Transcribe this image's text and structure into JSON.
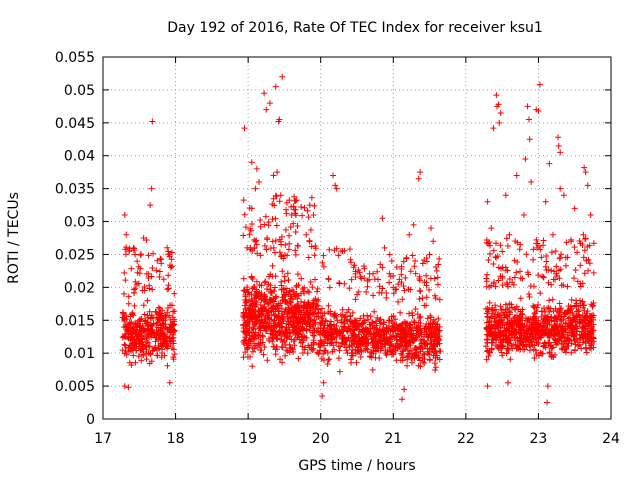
{
  "chart_data": {
    "type": "scatter",
    "title": "Day 192 of 2016, Rate Of TEC Index for receiver ksu1",
    "xlabel": "GPS time / hours",
    "ylabel": "ROTI / TECUs",
    "xlim": [
      17,
      24
    ],
    "ylim": [
      0,
      0.055
    ],
    "xticks": [
      17,
      18,
      19,
      20,
      21,
      22,
      23,
      24
    ],
    "yticks": [
      0,
      0.005,
      0.01,
      0.015,
      0.02,
      0.025,
      0.03,
      0.035,
      0.04,
      0.045,
      0.05,
      0.055
    ],
    "xtick_labels": [
      "17",
      "18",
      "19",
      "20",
      "21",
      "22",
      "23",
      "24"
    ],
    "ytick_labels": [
      "0",
      "0.005",
      "0.01",
      "0.015",
      "0.02",
      "0.025",
      "0.03",
      "0.035",
      "0.04",
      "0.045",
      "0.05",
      "0.055"
    ],
    "grid": true,
    "marker": "+",
    "color": "#ff0000",
    "series": [
      {
        "name": "ROTI",
        "clusters": [
          {
            "x_range": [
              17.27,
              17.99
            ],
            "typical_range": [
              0.007,
              0.019
            ],
            "count": 420,
            "outliers": [
              [
                17.68,
                0.0452
              ],
              [
                17.67,
                0.035
              ],
              [
                17.65,
                0.0325
              ],
              [
                17.3,
                0.031
              ],
              [
                17.56,
                0.0275
              ],
              [
                17.6,
                0.0272
              ],
              [
                17.95,
                0.0253
              ],
              [
                17.95,
                0.0232
              ],
              [
                17.32,
                0.028
              ],
              [
                17.42,
                0.026
              ],
              [
                17.3,
                0.005
              ],
              [
                17.35,
                0.0048
              ],
              [
                17.92,
                0.0055
              ]
            ]
          },
          {
            "x_range": [
              18.93,
              19.97
            ],
            "typical_range": [
              0.007,
              0.024
            ],
            "count": 820,
            "outliers": [
              [
                19.47,
                0.052
              ],
              [
                19.38,
                0.0505
              ],
              [
                19.22,
                0.0495
              ],
              [
                19.3,
                0.048
              ],
              [
                19.25,
                0.047
              ],
              [
                19.43,
                0.0455
              ],
              [
                19.42,
                0.0452
              ],
              [
                18.95,
                0.0442
              ],
              [
                19.05,
                0.039
              ],
              [
                19.12,
                0.038
              ],
              [
                19.35,
                0.037
              ],
              [
                19.4,
                0.0375
              ],
              [
                19.1,
                0.035
              ],
              [
                19.15,
                0.036
              ],
              [
                19.45,
                0.034
              ],
              [
                19.05,
                0.032
              ],
              [
                19.02,
                0.028
              ],
              [
                19.1,
                0.027
              ],
              [
                19.6,
                0.031
              ],
              [
                19.85,
                0.0325
              ],
              [
                19.9,
                0.031
              ],
              [
                19.8,
                0.028
              ],
              [
                19.12,
                0.0265
              ]
            ]
          },
          {
            "x_range": [
              19.97,
              20.45
            ],
            "typical_range": [
              0.007,
              0.019
            ],
            "count": 220,
            "outliers": [
              [
                20.17,
                0.037
              ],
              [
                20.2,
                0.0355
              ],
              [
                20.22,
                0.035
              ],
              [
                20.28,
                0.0255
              ],
              [
                20.3,
                0.0255
              ],
              [
                20.02,
                0.0035
              ],
              [
                20.04,
                0.0055
              ]
            ]
          },
          {
            "x_range": [
              20.45,
              21.1
            ],
            "typical_range": [
              0.0075,
              0.0175
            ],
            "count": 350,
            "outliers": [
              [
                20.85,
                0.0305
              ],
              [
                20.88,
                0.026
              ],
              [
                20.95,
                0.025
              ],
              [
                20.82,
                0.0235
              ],
              [
                20.85,
                0.023
              ],
              [
                20.98,
                0.024
              ],
              [
                21.0,
                0.02
              ]
            ]
          },
          {
            "x_range": [
              21.1,
              21.65
            ],
            "typical_range": [
              0.0065,
              0.018
            ],
            "count": 330,
            "outliers": [
              [
                21.37,
                0.0375
              ],
              [
                21.35,
                0.0365
              ],
              [
                21.28,
                0.0295
              ],
              [
                21.22,
                0.028
              ],
              [
                21.52,
                0.029
              ],
              [
                21.55,
                0.027
              ],
              [
                21.5,
                0.025
              ],
              [
                21.3,
                0.024
              ],
              [
                21.18,
                0.0245
              ],
              [
                21.6,
                0.0225
              ],
              [
                21.12,
                0.003
              ],
              [
                21.15,
                0.0045
              ]
            ]
          },
          {
            "x_range": [
              22.27,
              23.77
            ],
            "typical_range": [
              0.0075,
              0.02
            ],
            "count": 950,
            "outliers": [
              [
                23.02,
                0.0508
              ],
              [
                22.42,
                0.0492
              ],
              [
                22.43,
                0.0475
              ],
              [
                22.45,
                0.0478
              ],
              [
                22.48,
                0.0465
              ],
              [
                22.85,
                0.0475
              ],
              [
                22.87,
                0.0455
              ],
              [
                22.97,
                0.047
              ],
              [
                23.0,
                0.0468
              ],
              [
                22.38,
                0.0442
              ],
              [
                22.46,
                0.045
              ],
              [
                22.88,
                0.0425
              ],
              [
                23.27,
                0.0428
              ],
              [
                23.28,
                0.0415
              ],
              [
                23.3,
                0.0405
              ],
              [
                22.82,
                0.0395
              ],
              [
                23.15,
                0.0388
              ],
              [
                23.63,
                0.0382
              ],
              [
                23.65,
                0.0375
              ],
              [
                22.7,
                0.037
              ],
              [
                22.9,
                0.036
              ],
              [
                23.68,
                0.0355
              ],
              [
                23.3,
                0.035
              ],
              [
                23.35,
                0.034
              ],
              [
                22.55,
                0.034
              ],
              [
                22.3,
                0.033
              ],
              [
                22.8,
                0.031
              ],
              [
                23.1,
                0.033
              ],
              [
                23.5,
                0.032
              ],
              [
                23.72,
                0.031
              ],
              [
                22.35,
                0.029
              ],
              [
                22.6,
                0.028
              ],
              [
                22.75,
                0.0265
              ],
              [
                23.2,
                0.028
              ],
              [
                23.45,
                0.027
              ],
              [
                23.62,
                0.028
              ],
              [
                23.12,
                0.0025
              ],
              [
                23.13,
                0.005
              ],
              [
                22.3,
                0.005
              ],
              [
                22.58,
                0.0055
              ]
            ]
          }
        ]
      }
    ]
  }
}
